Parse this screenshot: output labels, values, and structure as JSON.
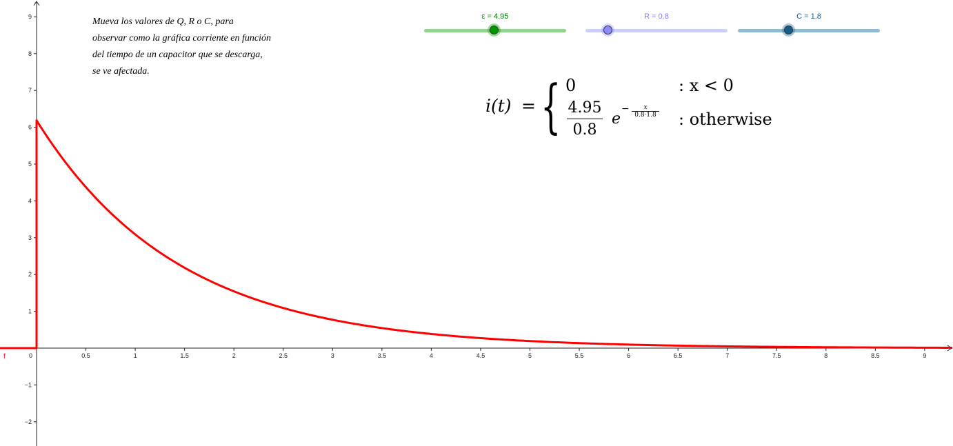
{
  "instructions": [
    "Mueva los valores de Q, R o C, para",
    "observar como la gráfica corriente en función",
    "del tiempo de un capacitor que se descarga,",
    "se ve afectada."
  ],
  "sliders": [
    {
      "label": "ε = 4.95",
      "value": 4.95,
      "min": 0,
      "max": 10,
      "color": "#008000",
      "track": "#93d48d",
      "knob": "#009900"
    },
    {
      "label": "R = 0.8",
      "value": 0.8,
      "min": 0,
      "max": 5,
      "color": "#7d7dff",
      "track": "#cdcdf9",
      "knob": "#8c8cff"
    },
    {
      "label": "C = 1.8",
      "value": 1.8,
      "min": 0,
      "max": 5,
      "color": "#1c5b8a",
      "track": "#91bbd3",
      "knob": "#155d8b"
    }
  ],
  "formula": {
    "lhs": "i(t)",
    "eq": "=",
    "case1_value": "0",
    "case1_cond": ": x < 0",
    "numerator": "4.95",
    "denominator": "0.8",
    "exp_base": "e",
    "exp_sign": "−",
    "exp_num": "x",
    "exp_den": "0.8·1.8",
    "case2_cond": ": otherwise"
  },
  "chart_data": {
    "type": "line",
    "title": "",
    "xlabel": "",
    "ylabel": "",
    "xlim": [
      -0.3,
      9.25
    ],
    "ylim": [
      -2.6,
      9.4
    ],
    "x_ticks": [
      "0.5",
      "1",
      "1.5",
      "2",
      "2.5",
      "3",
      "3.5",
      "4",
      "4.5",
      "5",
      "5.5",
      "6",
      "6.5",
      "7",
      "7.5",
      "8",
      "8.5",
      "9"
    ],
    "y_ticks": [
      "9",
      "8",
      "7",
      "6",
      "5",
      "4",
      "3",
      "2",
      "1",
      "−1",
      "−2"
    ],
    "origin_label": "0",
    "grid": false,
    "series": [
      {
        "name": "f",
        "color": "#ff0000",
        "params": {
          "E": 4.95,
          "R": 0.8,
          "C": 1.8
        },
        "description_values": {
          "x": [
            0,
            0.5,
            1,
            1.5,
            2,
            3,
            4,
            5,
            6,
            7,
            8,
            9
          ],
          "y": [
            6.19,
            4.38,
            3.1,
            2.19,
            1.55,
            0.78,
            0.39,
            0.19,
            0.1,
            0.05,
            0.02,
            0.01
          ]
        }
      }
    ]
  }
}
